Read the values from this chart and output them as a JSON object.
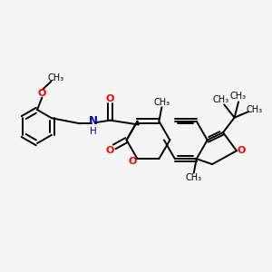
{
  "bg": "#f5f5f5",
  "bc": "#000000",
  "oc": "#ff0000",
  "nc": "#0000cc",
  "lw": 1.4,
  "fs": 7.5,
  "xlim": [
    0,
    10
  ],
  "ylim": [
    1.5,
    8.5
  ]
}
